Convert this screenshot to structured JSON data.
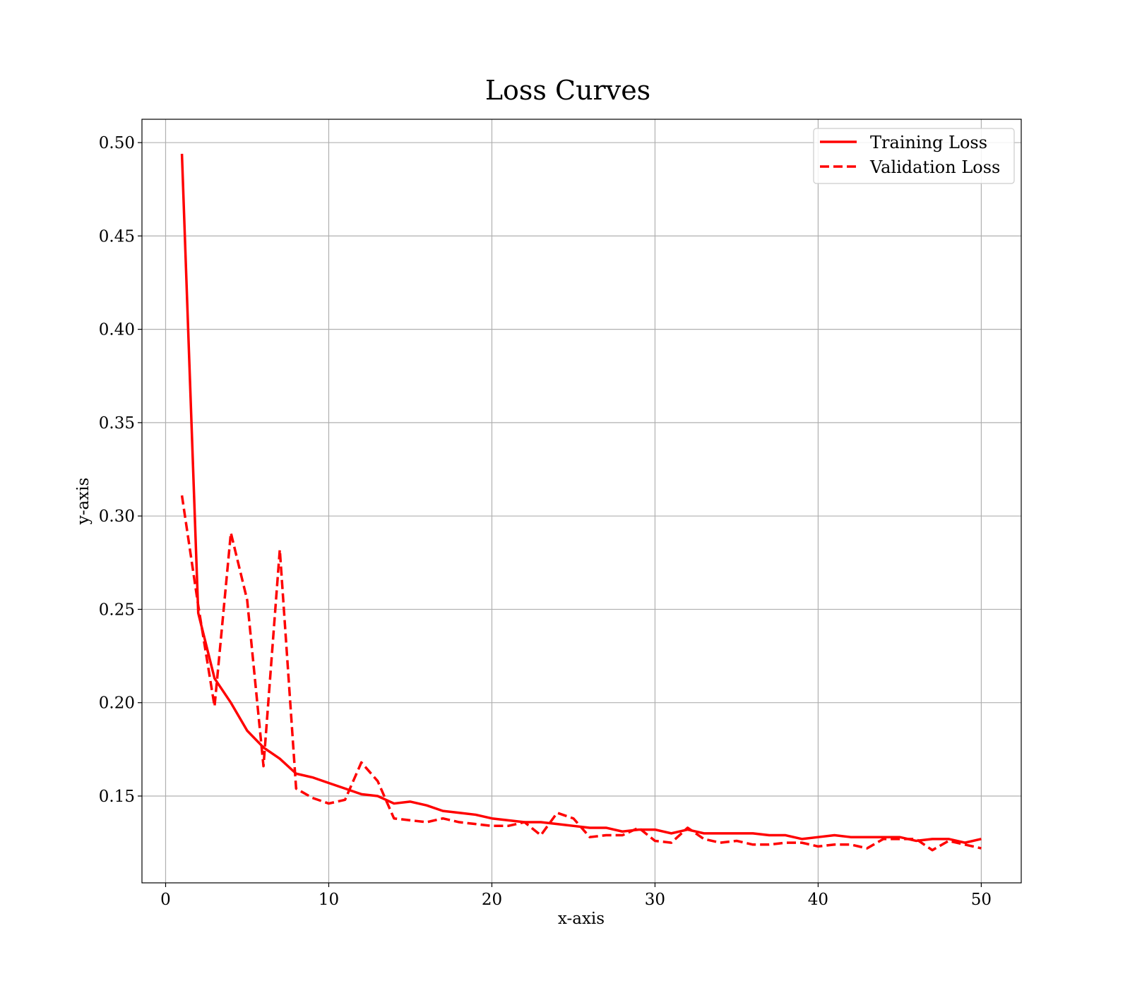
{
  "chart_data": {
    "type": "line",
    "title": "Loss Curves",
    "xlabel": "x-axis",
    "ylabel": "y-axis",
    "xlim": [
      -1.45,
      52.45
    ],
    "ylim": [
      0.1035,
      0.5125
    ],
    "xticks": [
      0,
      10,
      20,
      30,
      40,
      50
    ],
    "yticks": [
      0.15,
      0.2,
      0.25,
      0.3,
      0.35,
      0.4,
      0.45,
      0.5
    ],
    "xtick_labels": [
      "0",
      "10",
      "20",
      "30",
      "40",
      "50"
    ],
    "ytick_labels": [
      "0.15",
      "0.20",
      "0.25",
      "0.30",
      "0.35",
      "0.40",
      "0.45",
      "0.50"
    ],
    "grid": true,
    "legend_position": "top-right",
    "x": [
      1,
      2,
      3,
      4,
      5,
      6,
      7,
      8,
      9,
      10,
      11,
      12,
      13,
      14,
      15,
      16,
      17,
      18,
      19,
      20,
      21,
      22,
      23,
      24,
      25,
      26,
      27,
      28,
      29,
      30,
      31,
      32,
      33,
      34,
      35,
      36,
      37,
      38,
      39,
      40,
      41,
      42,
      43,
      44,
      45,
      46,
      47,
      48,
      49,
      50
    ],
    "series": [
      {
        "name": "Training Loss",
        "style": "solid",
        "color": "#ff0000",
        "values": [
          0.494,
          0.248,
          0.213,
          0.2,
          0.185,
          0.176,
          0.17,
          0.162,
          0.16,
          0.157,
          0.154,
          0.151,
          0.15,
          0.146,
          0.147,
          0.145,
          0.142,
          0.141,
          0.14,
          0.138,
          0.137,
          0.136,
          0.136,
          0.135,
          0.134,
          0.133,
          0.133,
          0.131,
          0.132,
          0.132,
          0.13,
          0.132,
          0.13,
          0.13,
          0.13,
          0.13,
          0.129,
          0.129,
          0.127,
          0.128,
          0.129,
          0.128,
          0.128,
          0.128,
          0.128,
          0.126,
          0.127,
          0.127,
          0.125,
          0.127
        ]
      },
      {
        "name": "Validation Loss",
        "style": "dashed",
        "color": "#ff0000",
        "values": [
          0.311,
          0.252,
          0.198,
          0.291,
          0.255,
          0.166,
          0.282,
          0.154,
          0.149,
          0.146,
          0.148,
          0.168,
          0.158,
          0.138,
          0.137,
          0.136,
          0.138,
          0.136,
          0.135,
          0.134,
          0.134,
          0.136,
          0.129,
          0.141,
          0.138,
          0.128,
          0.129,
          0.129,
          0.133,
          0.126,
          0.125,
          0.133,
          0.127,
          0.125,
          0.126,
          0.124,
          0.124,
          0.125,
          0.125,
          0.123,
          0.124,
          0.124,
          0.122,
          0.127,
          0.127,
          0.127,
          0.121,
          0.126,
          0.124,
          0.122
        ]
      }
    ]
  }
}
